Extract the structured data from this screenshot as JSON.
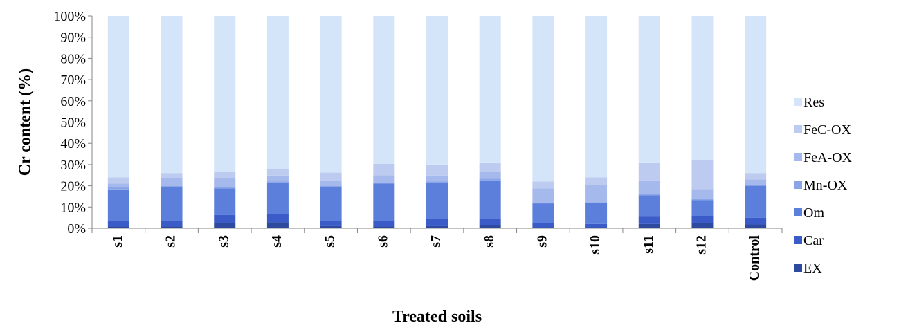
{
  "chart_data": {
    "type": "bar",
    "stacked": "percent",
    "categories": [
      "s1",
      "s2",
      "s3",
      "s4",
      "s5",
      "s6",
      "s7",
      "s8",
      "s9",
      "s10",
      "s11",
      "s12",
      "Control"
    ],
    "series": [
      {
        "name": "EX",
        "color": "#2E4A9E",
        "values": [
          0.8,
          0.8,
          2.5,
          2.8,
          1.0,
          0.8,
          1.0,
          1.5,
          0.5,
          0.5,
          2.0,
          2.5,
          1.8
        ]
      },
      {
        "name": "Car",
        "color": "#3A5BC8",
        "values": [
          2.5,
          2.5,
          3.8,
          4.0,
          2.5,
          2.5,
          3.5,
          3.0,
          2.0,
          1.5,
          3.5,
          3.2,
          3.2
        ]
      },
      {
        "name": "Om",
        "color": "#5B7FDB",
        "values": [
          15.0,
          16.2,
          12.5,
          14.8,
          15.8,
          17.8,
          17.0,
          18.0,
          9.2,
          10.0,
          10.0,
          7.5,
          15.0
        ]
      },
      {
        "name": "Mn-OX",
        "color": "#8AA4E8",
        "values": [
          1.0,
          0.5,
          0.7,
          0.5,
          0.7,
          0.4,
          0.5,
          0.8,
          0.3,
          0.3,
          0.5,
          0.8,
          0.5
        ]
      },
      {
        "name": "FeA-OX",
        "color": "#A5B9EC",
        "values": [
          1.7,
          3.5,
          4.0,
          2.7,
          2.2,
          3.5,
          2.8,
          3.2,
          6.8,
          8.2,
          6.5,
          4.5,
          2.5
        ]
      },
      {
        "name": "FeC-OX",
        "color": "#BDCBF0",
        "values": [
          3.0,
          2.5,
          3.0,
          3.2,
          4.0,
          5.3,
          5.2,
          4.5,
          3.2,
          3.5,
          8.5,
          13.5,
          3.0
        ]
      },
      {
        "name": "Res",
        "color": "#D4E5FA",
        "values": [
          76.0,
          74.0,
          73.5,
          72.0,
          73.8,
          69.7,
          70.0,
          69.0,
          78.0,
          76.0,
          69.0,
          68.0,
          74.0
        ]
      }
    ],
    "yticks": [
      "0%",
      "10%",
      "20%",
      "30%",
      "40%",
      "50%",
      "60%",
      "70%",
      "80%",
      "90%",
      "100%"
    ],
    "ylim": [
      0,
      100
    ],
    "ylabel": "Cr content (%)",
    "xlabel": "Treated soils",
    "legend_position": "right",
    "legend_order": [
      "Res",
      "FeC-OX",
      "FeA-OX",
      "Mn-OX",
      "Om",
      "Car",
      "EX"
    ],
    "grid": false
  }
}
